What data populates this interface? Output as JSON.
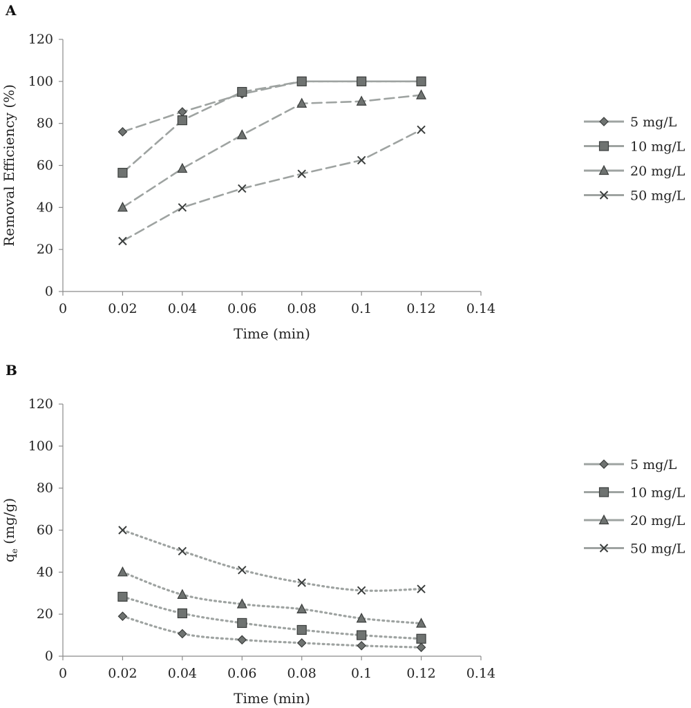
{
  "chart_data": [
    {
      "type": "line",
      "panel": "A",
      "xlabel": "Time (min)",
      "ylabel": "Removal Efficiency (%)",
      "xlim": [
        0,
        0.14
      ],
      "ylim": [
        0,
        120
      ],
      "xticks": [
        "0",
        "0.02",
        "0.04",
        "0.06",
        "0.08",
        "0.1",
        "0.12",
        "0.14"
      ],
      "yticks": [
        "0",
        "20",
        "40",
        "60",
        "80",
        "100",
        "120"
      ],
      "line_style": "dashed",
      "grid": false,
      "legend_position": "right",
      "x": [
        0.02,
        0.04,
        0.06,
        0.08,
        0.1,
        0.12
      ],
      "series": [
        {
          "name": "5 mg/L",
          "marker": "diamond",
          "values": [
            76,
            85.5,
            94,
            100,
            100,
            100
          ]
        },
        {
          "name": "10 mg/L",
          "marker": "square",
          "values": [
            56.5,
            81.5,
            95,
            100,
            100,
            100
          ]
        },
        {
          "name": "20 mg/L",
          "marker": "triangle",
          "values": [
            40,
            58.5,
            74.5,
            89.5,
            90.5,
            93.5
          ]
        },
        {
          "name": "50 mg/L",
          "marker": "x",
          "values": [
            24,
            40,
            49,
            56,
            62.5,
            77
          ]
        }
      ]
    },
    {
      "type": "line",
      "panel": "B",
      "xlabel": "Time (min)",
      "ylabel_main": "q",
      "ylabel_sub": "e",
      "ylabel_rest": " (mg/g)",
      "xlim": [
        0,
        0.14
      ],
      "ylim": [
        0,
        120
      ],
      "xticks": [
        "0",
        "0.02",
        "0.04",
        "0.06",
        "0.08",
        "0.1",
        "0.12",
        "0.14"
      ],
      "yticks": [
        "0",
        "20",
        "40",
        "60",
        "80",
        "100",
        "120"
      ],
      "line_style": "dotted",
      "grid": false,
      "legend_position": "right",
      "x": [
        0.02,
        0.04,
        0.06,
        0.08,
        0.1,
        0.12
      ],
      "series": [
        {
          "name": "5 mg/L",
          "marker": "diamond",
          "values": [
            19,
            10.7,
            7.8,
            6.3,
            5,
            4.2
          ]
        },
        {
          "name": "10 mg/L",
          "marker": "square",
          "values": [
            28.3,
            20.4,
            15.8,
            12.5,
            10,
            8.3
          ]
        },
        {
          "name": "20 mg/L",
          "marker": "triangle",
          "values": [
            40,
            29.3,
            24.8,
            22.4,
            18,
            15.6
          ]
        },
        {
          "name": "50 mg/L",
          "marker": "x",
          "values": [
            60,
            50,
            41,
            35,
            31.3,
            32
          ]
        }
      ]
    }
  ],
  "colors": {
    "line": "#9ea3a1",
    "marker_fill": "#6f7371",
    "marker_stroke": "#3a3d3c",
    "axis": "#8a8a8a",
    "text": "#222222"
  }
}
